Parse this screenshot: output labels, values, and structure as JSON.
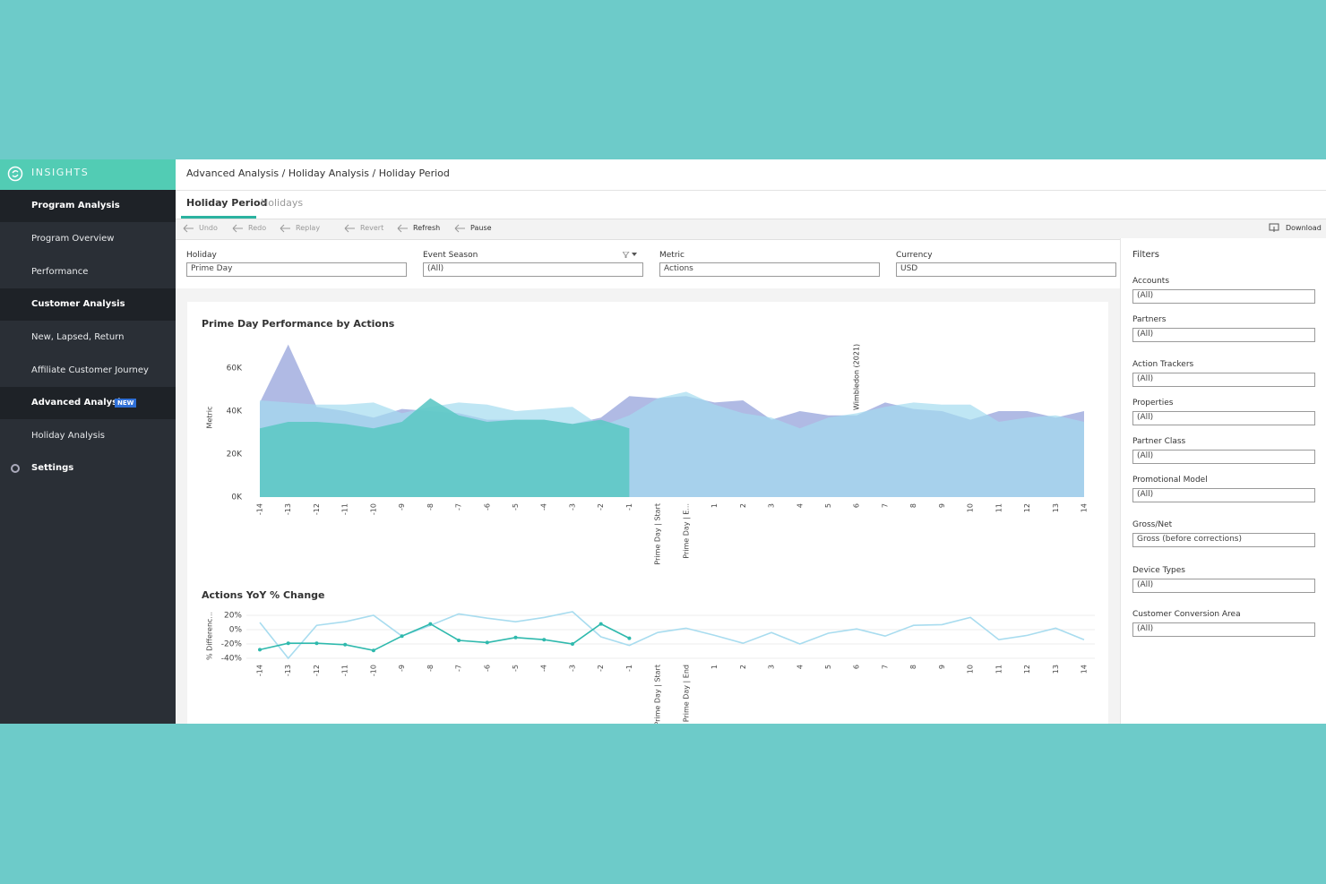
{
  "sidebar": {
    "brand": "INSIGHTS",
    "items": [
      {
        "label": "Program Analysis",
        "children": [
          "Program Overview",
          "Performance"
        ]
      },
      {
        "label": "Customer Analysis",
        "children": [
          "New, Lapsed, Return",
          "Affiliate Customer Journey"
        ]
      },
      {
        "label": "Advanced Analysis",
        "badge": "NEW",
        "children": [
          "Holiday Analysis"
        ]
      },
      {
        "label": "Settings"
      }
    ]
  },
  "breadcrumb": "Advanced Analysis / Holiday Analysis / Holiday Period",
  "tabs": [
    "Holiday Period",
    "Holidays"
  ],
  "toolbar": [
    "Undo",
    "Redo",
    "Replay",
    "Revert",
    "Refresh",
    "Pause"
  ],
  "download": "Download",
  "parameters": [
    {
      "label": "Holiday",
      "value": "Prime Day"
    },
    {
      "label": "Event Season",
      "value": "(All)"
    },
    {
      "label": "Metric",
      "value": "Actions"
    },
    {
      "label": "Currency",
      "value": "USD"
    }
  ],
  "filters": {
    "title": "Filters",
    "items": [
      {
        "label": "Accounts",
        "value": "(All)"
      },
      {
        "label": "Partners",
        "value": "(All)"
      },
      {
        "label": "Action Trackers",
        "value": "(All)"
      },
      {
        "label": "Properties",
        "value": "(All)"
      },
      {
        "label": "Partner Class",
        "value": "(All)"
      },
      {
        "label": "Promotional Model",
        "value": "(All)"
      },
      {
        "label": "Gross/Net",
        "value": "Gross (before corrections)"
      },
      {
        "label": "Device Types",
        "value": "(All)"
      },
      {
        "label": "Customer Conversion Area",
        "value": "(All)"
      }
    ]
  },
  "chart_data": [
    {
      "type": "area",
      "title": "Prime Day Performance by Actions",
      "y_label": "Metric",
      "categories": [
        "-14",
        "-13",
        "-12",
        "-11",
        "-10",
        "-9",
        "-8",
        "-7",
        "-6",
        "-5",
        "-4",
        "-3",
        "-2",
        "-1",
        "Prime Day | Start",
        "Prime Day | E...",
        "1",
        "2",
        "3",
        "4",
        "5",
        "6",
        "7",
        "8",
        "9",
        "10",
        "11",
        "12",
        "13",
        "14"
      ],
      "series": [
        {
          "color": "#8f9cd8",
          "values": [
            44000,
            71000,
            42000,
            40000,
            37000,
            41000,
            40000,
            39000,
            36000,
            36000,
            36000,
            34000,
            37000,
            47000,
            46000,
            47000,
            44000,
            45000,
            36000,
            40000,
            38000,
            38000,
            44000,
            41000,
            40000,
            36000,
            40000,
            40000,
            37000,
            40000
          ]
        },
        {
          "color": "#a4dcf0",
          "values": [
            45000,
            44000,
            43000,
            43000,
            44000,
            39000,
            42000,
            44000,
            43000,
            40000,
            41000,
            42000,
            33000,
            38000,
            46000,
            49000,
            43000,
            39000,
            37000,
            32000,
            37000,
            39000,
            42000,
            44000,
            43000,
            43000,
            35000,
            37000,
            38000,
            35000
          ]
        },
        {
          "color": "#5ec8c5",
          "values": [
            32000,
            35000,
            35000,
            34000,
            32000,
            35000,
            46000,
            38000,
            35000,
            36000,
            36000,
            34000,
            36000,
            32000,
            null,
            null,
            null,
            null,
            null,
            null,
            null,
            null,
            null,
            null,
            null,
            null,
            null,
            null,
            null,
            null
          ]
        }
      ],
      "annotations": [
        {
          "text": "Wimbledon (2021)",
          "x": "6"
        }
      ],
      "ylim": [
        0,
        75000
      ],
      "yticks": [
        {
          "value": 0,
          "label": "0K"
        },
        {
          "value": 20000,
          "label": "20K"
        },
        {
          "value": 40000,
          "label": "40K"
        },
        {
          "value": 60000,
          "label": "60K"
        }
      ],
      "grid": false
    },
    {
      "type": "line",
      "title": "Actions YoY % Change",
      "y_label": "% Differenc...",
      "categories": [
        "-14",
        "-13",
        "-12",
        "-11",
        "-10",
        "-9",
        "-8",
        "-7",
        "-6",
        "-5",
        "-4",
        "-3",
        "-2",
        "-1",
        "Prime Day | Start",
        "Prime Day | End",
        "1",
        "2",
        "3",
        "4",
        "5",
        "6",
        "7",
        "8",
        "9",
        "10",
        "11",
        "12",
        "13",
        "14"
      ],
      "series": [
        {
          "color": "#a8dcef",
          "markers": false,
          "values": [
            10,
            -40,
            6,
            11,
            20,
            -9,
            6,
            22,
            16,
            11,
            17,
            25,
            -10,
            -22,
            -4,
            2,
            -8,
            -19,
            -4,
            -20,
            -5,
            1,
            -9,
            6,
            7,
            17,
            -14,
            -8,
            2,
            -14
          ]
        },
        {
          "color": "#2fb9ad",
          "markers": true,
          "values": [
            -28,
            -19,
            -19,
            -21,
            -29,
            -9,
            8,
            -15,
            -18,
            -11,
            -14,
            -20,
            8,
            -12,
            null,
            null,
            null,
            null,
            null,
            null,
            null,
            null,
            null,
            null,
            null,
            null,
            null,
            null,
            null,
            null
          ]
        }
      ],
      "ylim": [
        -45,
        30
      ],
      "yticks": [
        {
          "value": 20,
          "label": "20%"
        },
        {
          "value": 0,
          "label": "0%"
        },
        {
          "value": -20,
          "label": "-20%"
        },
        {
          "value": -40,
          "label": "-40%"
        }
      ],
      "grid": true
    }
  ]
}
